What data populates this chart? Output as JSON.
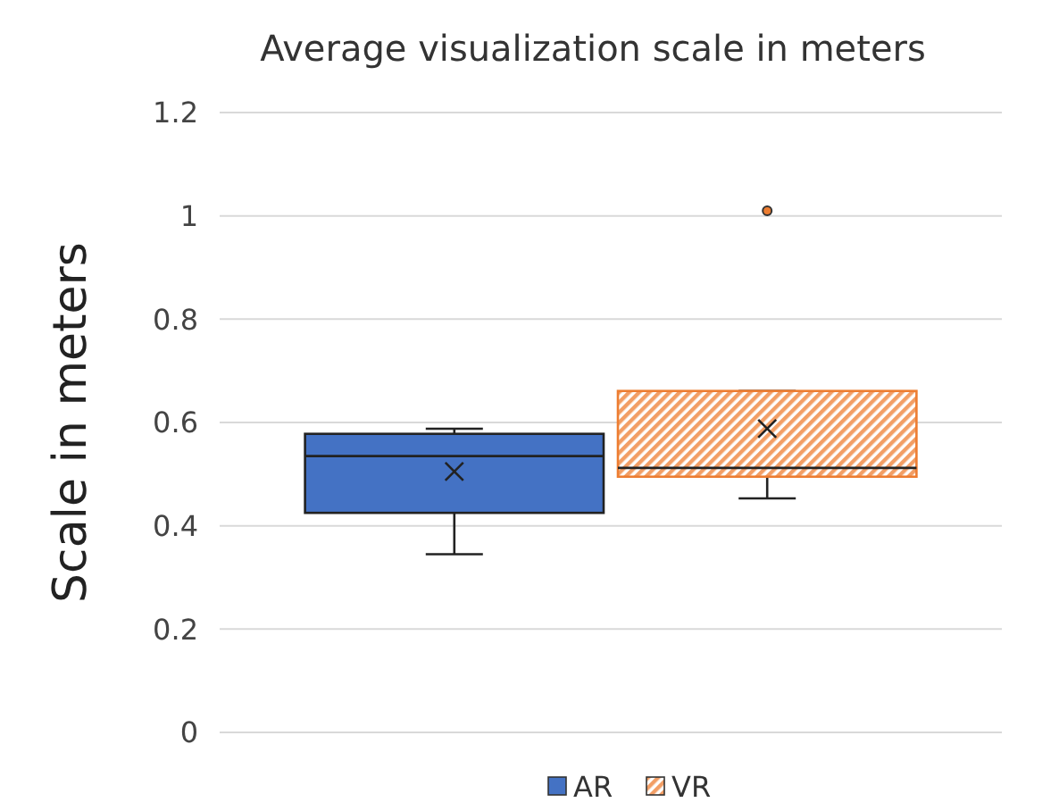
{
  "chart_data": {
    "type": "box",
    "title": "Average visualization scale in meters",
    "ylabel": "Scale in meters",
    "categories": [
      null
    ],
    "series": [
      {
        "name": "AR",
        "color": "#4472c4",
        "boxes": [
          {
            "low": 0.345,
            "q1": 0.425,
            "median": 0.535,
            "q3": 0.578,
            "high": 0.588,
            "mean": 0.505
          }
        ]
      },
      {
        "name": "VR",
        "color": "#ed7d31",
        "boxes": [
          {
            "low": 0.453,
            "q1": 0.495,
            "median": 0.512,
            "q3": 0.661,
            "high": 0.661,
            "mean": 0.588,
            "outliers": [
              1.01
            ]
          }
        ]
      }
    ],
    "ylim": [
      0,
      1.2
    ],
    "yticks": [
      0,
      0.2,
      0.4,
      0.6,
      0.8,
      1,
      1.2
    ],
    "grid": "y",
    "legend": "bottom"
  }
}
